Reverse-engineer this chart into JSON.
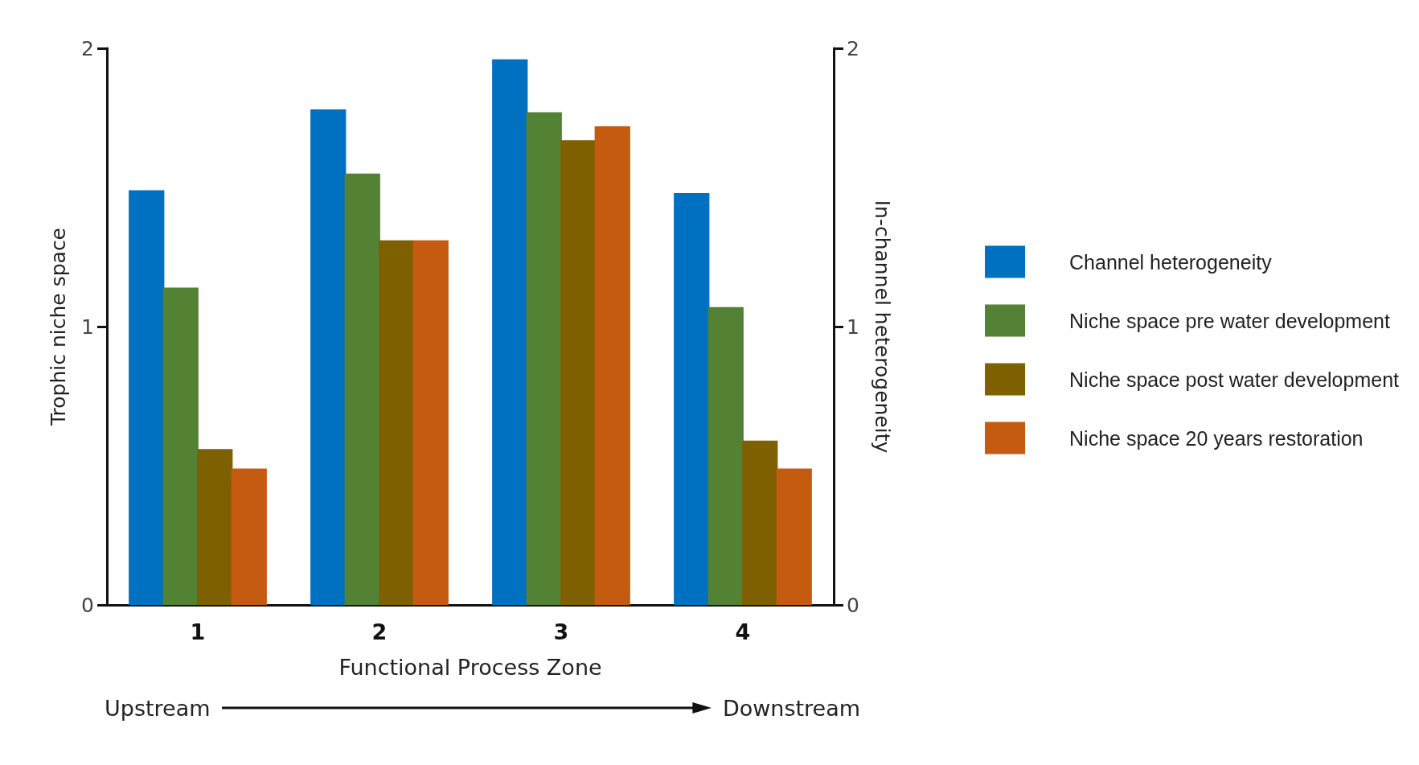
{
  "chart_data": {
    "type": "bar",
    "xlabel": "Functional Process Zone",
    "ylabel": "Trophic niche space",
    "y2label": "In-channel heterogeneity",
    "categories": [
      "1",
      "2",
      "3",
      "4"
    ],
    "series": [
      {
        "name": "Channel heterogeneity",
        "color": "#0070c0",
        "values": [
          1.49,
          1.78,
          1.96,
          1.48
        ]
      },
      {
        "name": "Niche space pre water development",
        "color": "#548235",
        "values": [
          1.14,
          1.55,
          1.77,
          1.07
        ]
      },
      {
        "name": "Niche space post water development",
        "color": "#7f6000",
        "values": [
          0.56,
          1.31,
          1.67,
          0.59
        ]
      },
      {
        "name": "Niche space 20 years restoration",
        "color": "#c55a11",
        "values": [
          0.49,
          1.31,
          1.72,
          0.49
        ]
      }
    ],
    "ylim": [
      0,
      2
    ],
    "yticks": [
      0,
      1,
      2
    ],
    "y2lim": [
      0,
      2
    ],
    "y2ticks": [
      0,
      1,
      2
    ],
    "grid": false,
    "legend": "right",
    "annotations": [
      "Upstream",
      "Downstream"
    ]
  }
}
